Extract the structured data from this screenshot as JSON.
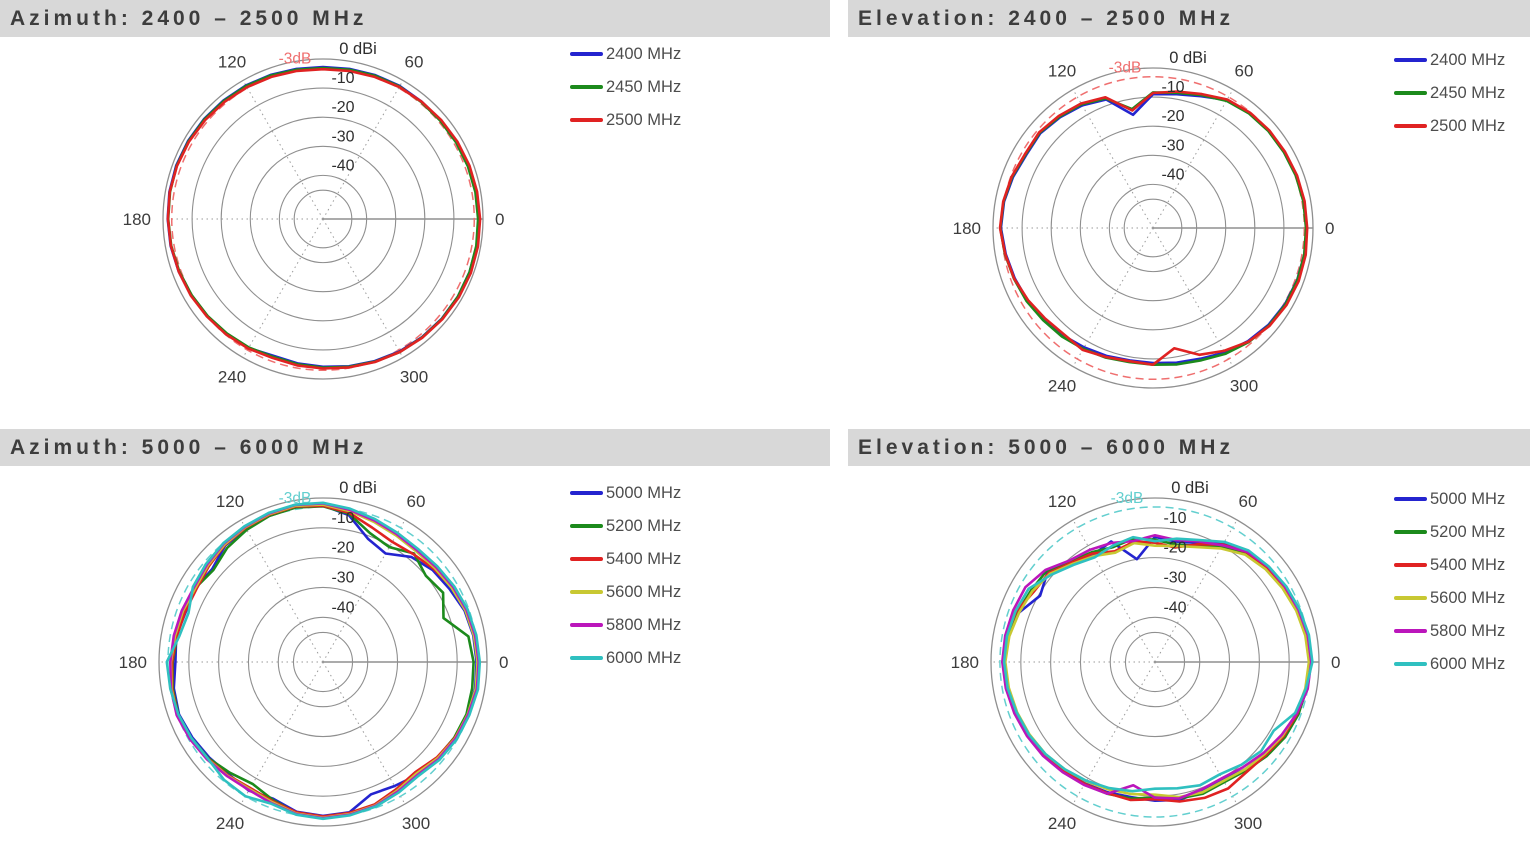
{
  "page": {
    "background": "#ffffff",
    "titlebar_bg": "#d8d8d8",
    "grid_color": "#8f8f8f"
  },
  "chart_data": [
    {
      "type": "polar",
      "title": "Azimuth: 2400 – 2500 MHz",
      "radial_unit": "dBi",
      "scale_min_db": -55,
      "radial_ticks": [
        {
          "value": 0,
          "label": "0 dBi"
        },
        {
          "value": -10,
          "label": "-10"
        },
        {
          "value": -20,
          "label": "-20"
        },
        {
          "value": -30,
          "label": "-30"
        },
        {
          "value": -40,
          "label": "-40"
        }
      ],
      "angle_ticks": [
        0,
        60,
        120,
        180,
        240,
        300
      ],
      "reference": {
        "label": "-3dB",
        "value": -3,
        "color": "#ef6f6f",
        "style": "dashed"
      },
      "angles_deg": [
        0,
        10,
        20,
        30,
        40,
        50,
        60,
        70,
        80,
        90,
        100,
        110,
        120,
        130,
        140,
        150,
        160,
        170,
        180,
        190,
        200,
        210,
        220,
        230,
        240,
        250,
        260,
        270,
        280,
        290,
        300,
        310,
        320,
        330,
        340,
        350
      ],
      "series": [
        {
          "name": "2400 MHz",
          "color": "#2424cf",
          "values": [
            -1.5,
            -1.6,
            -1.8,
            -2.0,
            -2.2,
            -2.3,
            -2.2,
            -2.4,
            -2.6,
            -2.8,
            -2.6,
            -2.3,
            -2.0,
            -1.8,
            -1.6,
            -1.4,
            -1.3,
            -1.4,
            -1.6,
            -1.8,
            -2.2,
            -2.6,
            -3.0,
            -3.4,
            -3.8,
            -5.0,
            -4.6,
            -4.2,
            -3.6,
            -3.0,
            -2.4,
            -2.0,
            -1.7,
            -1.5,
            -1.4,
            -1.4
          ]
        },
        {
          "name": "2450 MHz",
          "color": "#1c8a1c",
          "values": [
            -1.7,
            -1.8,
            -2.0,
            -2.2,
            -2.4,
            -2.5,
            -2.4,
            -2.6,
            -2.9,
            -3.1,
            -2.9,
            -2.5,
            -2.2,
            -2.0,
            -1.8,
            -1.6,
            -1.5,
            -1.6,
            -1.8,
            -2.0,
            -2.4,
            -2.8,
            -3.2,
            -3.6,
            -4.0,
            -4.6,
            -4.3,
            -3.9,
            -3.4,
            -2.8,
            -2.2,
            -1.9,
            -1.6,
            -1.5,
            -1.4,
            -1.5
          ]
        },
        {
          "name": "2500 MHz",
          "color": "#e02222",
          "values": [
            -1.0,
            -1.2,
            -1.4,
            -1.7,
            -2.0,
            -2.3,
            -2.6,
            -3.0,
            -3.3,
            -3.5,
            -3.3,
            -3.0,
            -2.7,
            -2.4,
            -2.1,
            -1.8,
            -1.6,
            -1.5,
            -1.7,
            -1.9,
            -2.2,
            -2.5,
            -2.9,
            -3.2,
            -3.6,
            -4.2,
            -3.9,
            -3.6,
            -3.2,
            -2.7,
            -2.2,
            -1.8,
            -1.4,
            -1.1,
            -0.9,
            -0.9
          ]
        }
      ]
    },
    {
      "type": "polar",
      "title": "Elevation: 2400 – 2500 MHz",
      "radial_unit": "dBi",
      "scale_min_db": -55,
      "radial_ticks": [
        {
          "value": 0,
          "label": "0 dBi"
        },
        {
          "value": -10,
          "label": "-10"
        },
        {
          "value": -20,
          "label": "-20"
        },
        {
          "value": -30,
          "label": "-30"
        },
        {
          "value": -40,
          "label": "-40"
        }
      ],
      "angle_ticks": [
        0,
        60,
        120,
        180,
        240,
        300
      ],
      "reference": {
        "label": "-3dB",
        "value": -3,
        "color": "#ef6f6f",
        "style": "dashed"
      },
      "angles_deg": [
        0,
        10,
        20,
        30,
        40,
        50,
        60,
        70,
        80,
        90,
        100,
        110,
        120,
        130,
        140,
        150,
        160,
        170,
        180,
        190,
        200,
        210,
        220,
        230,
        240,
        250,
        260,
        270,
        280,
        290,
        300,
        310,
        320,
        330,
        340,
        350
      ],
      "series": [
        {
          "name": "2400 MHz",
          "color": "#2424cf",
          "values": [
            -2.2,
            -2.3,
            -2.5,
            -2.8,
            -3.0,
            -3.4,
            -4.2,
            -6.8,
            -8.3,
            -9.0,
            -15.5,
            -8.0,
            -6.3,
            -5.3,
            -4.4,
            -4.7,
            -3.8,
            -3.0,
            -2.7,
            -3.6,
            -4.4,
            -5.2,
            -6.2,
            -6.8,
            -7.6,
            -8.2,
            -8.8,
            -8.6,
            -8.0,
            -7.2,
            -5.6,
            -4.2,
            -3.2,
            -2.6,
            -2.3,
            -2.2
          ]
        },
        {
          "name": "2450 MHz",
          "color": "#1c8a1c",
          "values": [
            -2.4,
            -2.5,
            -2.7,
            -3.0,
            -3.2,
            -3.6,
            -4.5,
            -6.4,
            -7.8,
            -8.4,
            -13.5,
            -7.6,
            -5.9,
            -5.0,
            -4.1,
            -4.4,
            -3.5,
            -2.8,
            -2.5,
            -3.3,
            -4.1,
            -4.8,
            -5.7,
            -6.3,
            -7.0,
            -7.6,
            -8.2,
            -8.0,
            -7.4,
            -6.6,
            -5.1,
            -3.8,
            -2.9,
            -2.4,
            -2.2,
            -2.2
          ]
        },
        {
          "name": "2500 MHz",
          "color": "#e02222",
          "values": [
            -2.0,
            -2.1,
            -2.3,
            -2.6,
            -2.8,
            -3.2,
            -4.0,
            -6.0,
            -7.4,
            -8.6,
            -14.0,
            -7.2,
            -5.6,
            -4.7,
            -3.9,
            -4.2,
            -3.3,
            -2.7,
            -2.4,
            -3.4,
            -4.2,
            -5.4,
            -6.6,
            -7.3,
            -6.6,
            -7.8,
            -8.5,
            -8.0,
            -13.0,
            -8.6,
            -6.2,
            -4.0,
            -2.7,
            -2.0,
            -1.7,
            -1.7
          ]
        }
      ]
    },
    {
      "type": "polar",
      "title": "Azimuth: 5000 – 6000 MHz",
      "radial_unit": "dBi",
      "scale_min_db": -55,
      "radial_ticks": [
        {
          "value": 0,
          "label": "0 dBi"
        },
        {
          "value": -10,
          "label": "-10"
        },
        {
          "value": -20,
          "label": "-20"
        },
        {
          "value": -30,
          "label": "-30"
        },
        {
          "value": -40,
          "label": "-40"
        }
      ],
      "angle_ticks": [
        0,
        60,
        120,
        180,
        240,
        300
      ],
      "reference": {
        "label": "-3dB",
        "value": -3,
        "color": "#63cfcf",
        "style": "dashed"
      },
      "angles_deg": [
        0,
        10,
        20,
        30,
        40,
        50,
        60,
        70,
        80,
        90,
        100,
        110,
        120,
        130,
        140,
        150,
        160,
        170,
        180,
        190,
        200,
        210,
        220,
        230,
        240,
        250,
        260,
        270,
        280,
        290,
        300,
        310,
        320,
        330,
        340,
        350
      ],
      "series": [
        {
          "name": "5000 MHz",
          "color": "#2424cf",
          "values": [
            -3.5,
            -3.8,
            -4.5,
            -6.0,
            -7.0,
            -9.0,
            -13.0,
            -11.0,
            -5.0,
            -2.5,
            -2.2,
            -2.6,
            -3.4,
            -4.0,
            -6.5,
            -5.5,
            -6.0,
            -5.0,
            -5.5,
            -4.2,
            -3.6,
            -4.4,
            -5.2,
            -5.8,
            -5.2,
            -6.2,
            -4.0,
            -3.4,
            -3.8,
            -7.8,
            -7.0,
            -5.6,
            -4.6,
            -3.8,
            -3.4,
            -3.2
          ]
        },
        {
          "name": "5200 MHz",
          "color": "#1c8a1c",
          "values": [
            -4.5,
            -5.5,
            -12.0,
            -8.5,
            -10.0,
            -7.5,
            -10.5,
            -9.0,
            -4.5,
            -2.8,
            -2.4,
            -2.8,
            -3.8,
            -5.0,
            -7.0,
            -5.5,
            -4.8,
            -5.4,
            -4.6,
            -3.8,
            -3.4,
            -4.0,
            -4.8,
            -6.5,
            -7.8,
            -5.8,
            -3.6,
            -3.0,
            -3.4,
            -4.0,
            -5.5,
            -6.5,
            -5.0,
            -4.2,
            -3.8,
            -4.2
          ]
        },
        {
          "name": "5400 MHz",
          "color": "#e02222",
          "values": [
            -3.0,
            -3.4,
            -4.0,
            -5.0,
            -6.5,
            -7.8,
            -8.5,
            -7.0,
            -4.2,
            -2.6,
            -2.0,
            -2.4,
            -3.0,
            -3.8,
            -5.0,
            -6.0,
            -5.8,
            -5.2,
            -4.4,
            -3.6,
            -3.2,
            -3.8,
            -4.6,
            -5.4,
            -6.2,
            -5.4,
            -3.8,
            -3.2,
            -3.6,
            -4.2,
            -5.8,
            -6.8,
            -5.2,
            -4.0,
            -3.0,
            -2.8
          ]
        },
        {
          "name": "5600 MHz",
          "color": "#c8c832",
          "values": [
            -3.2,
            -3.6,
            -4.2,
            -5.2,
            -6.0,
            -6.5,
            -6.0,
            -5.0,
            -3.6,
            -2.2,
            -1.8,
            -2.2,
            -2.8,
            -3.6,
            -4.6,
            -5.5,
            -5.0,
            -4.6,
            -4.0,
            -3.4,
            -3.0,
            -3.6,
            -4.4,
            -5.2,
            -5.8,
            -5.0,
            -3.4,
            -2.8,
            -3.2,
            -3.8,
            -5.2,
            -6.2,
            -4.8,
            -3.8,
            -3.4,
            -3.0
          ]
        },
        {
          "name": "5800 MHz",
          "color": "#bb16bb",
          "values": [
            -2.8,
            -3.2,
            -3.8,
            -4.6,
            -5.5,
            -6.0,
            -5.5,
            -4.5,
            -3.2,
            -1.8,
            -1.5,
            -2.0,
            -2.6,
            -3.2,
            -4.2,
            -5.0,
            -4.6,
            -4.2,
            -3.8,
            -3.2,
            -2.8,
            -3.4,
            -4.2,
            -5.0,
            -5.4,
            -4.6,
            -3.2,
            -2.6,
            -3.0,
            -3.6,
            -4.8,
            -5.6,
            -4.4,
            -3.6,
            -3.2,
            -2.6
          ]
        },
        {
          "name": "6000 MHz",
          "color": "#2fc0c0",
          "values": [
            -2.4,
            -2.8,
            -3.4,
            -4.2,
            -5.0,
            -5.5,
            -5.0,
            -4.0,
            -2.8,
            -1.6,
            -1.4,
            -1.8,
            -2.4,
            -3.0,
            -3.8,
            -4.6,
            -7.0,
            -6.0,
            -2.6,
            -3.0,
            -3.4,
            -4.0,
            -4.6,
            -3.4,
            -3.0,
            -4.4,
            -3.0,
            -2.4,
            -2.8,
            -3.4,
            -4.4,
            -5.2,
            -4.0,
            -3.2,
            -2.8,
            -2.2
          ]
        }
      ]
    },
    {
      "type": "polar",
      "title": "Elevation: 5000 – 6000 MHz",
      "radial_unit": "dBi",
      "scale_min_db": -55,
      "radial_ticks": [
        {
          "value": 0,
          "label": "0 dBi"
        },
        {
          "value": -10,
          "label": "-10"
        },
        {
          "value": -20,
          "label": "-20"
        },
        {
          "value": -30,
          "label": "-30"
        },
        {
          "value": -40,
          "label": "-40"
        }
      ],
      "angle_ticks": [
        0,
        60,
        120,
        180,
        240,
        300
      ],
      "reference": {
        "label": "-3dB",
        "value": -3,
        "color": "#63cfcf",
        "style": "dashed"
      },
      "angles_deg": [
        0,
        10,
        20,
        30,
        40,
        50,
        60,
        70,
        80,
        90,
        100,
        110,
        120,
        130,
        140,
        150,
        160,
        170,
        180,
        190,
        200,
        210,
        220,
        230,
        240,
        250,
        260,
        270,
        280,
        290,
        300,
        310,
        320,
        330,
        340,
        350
      ],
      "series": [
        {
          "name": "5000 MHz",
          "color": "#2424cf",
          "values": [
            -2.8,
            -3.2,
            -4.0,
            -4.8,
            -5.6,
            -6.5,
            -9.0,
            -12.5,
            -14.0,
            -13.0,
            -20.0,
            -12.0,
            -13.5,
            -12.0,
            -8.0,
            -10.5,
            -6.5,
            -5.0,
            -4.5,
            -5.0,
            -5.5,
            -6.0,
            -6.5,
            -7.5,
            -8.0,
            -8.5,
            -9.0,
            -8.5,
            -8.0,
            -9.0,
            -9.5,
            -8.0,
            -6.5,
            -5.0,
            -4.0,
            -3.2
          ]
        },
        {
          "name": "5200 MHz",
          "color": "#1c8a1c",
          "values": [
            -3.2,
            -3.6,
            -4.4,
            -5.2,
            -6.2,
            -7.5,
            -10.5,
            -13.5,
            -15.0,
            -14.0,
            -13.0,
            -14.0,
            -12.5,
            -11.0,
            -7.5,
            -7.0,
            -6.0,
            -4.6,
            -4.2,
            -4.6,
            -5.2,
            -5.6,
            -6.2,
            -7.0,
            -7.6,
            -8.0,
            -8.5,
            -9.5,
            -8.5,
            -8.0,
            -8.5,
            -7.5,
            -6.0,
            -4.6,
            -3.8,
            -3.4
          ]
        },
        {
          "name": "5400 MHz",
          "color": "#e02222",
          "values": [
            -3.0,
            -3.4,
            -4.2,
            -5.0,
            -6.0,
            -7.0,
            -9.5,
            -13.0,
            -16.0,
            -15.0,
            -14.0,
            -15.5,
            -13.0,
            -11.5,
            -8.5,
            -8.0,
            -5.5,
            -4.4,
            -4.0,
            -4.4,
            -5.0,
            -5.8,
            -6.4,
            -7.2,
            -7.8,
            -8.2,
            -8.0,
            -9.0,
            -7.5,
            -6.5,
            -6.0,
            -7.0,
            -6.5,
            -5.2,
            -4.2,
            -3.4
          ]
        },
        {
          "name": "5600 MHz",
          "color": "#c8c832",
          "values": [
            -3.4,
            -3.8,
            -4.6,
            -5.6,
            -6.6,
            -8.0,
            -11.0,
            -14.0,
            -15.5,
            -16.0,
            -14.5,
            -16.0,
            -14.0,
            -12.0,
            -9.0,
            -7.5,
            -6.5,
            -5.4,
            -4.8,
            -5.2,
            -5.8,
            -6.4,
            -7.0,
            -8.0,
            -8.8,
            -9.5,
            -10.0,
            -10.5,
            -9.0,
            -8.5,
            -9.0,
            -8.0,
            -7.0,
            -5.6,
            -4.6,
            -3.8
          ]
        },
        {
          "name": "5800 MHz",
          "color": "#bb16bb",
          "values": [
            -2.6,
            -3.0,
            -3.8,
            -4.6,
            -5.4,
            -6.8,
            -9.8,
            -12.0,
            -13.5,
            -12.5,
            -13.8,
            -12.5,
            -11.5,
            -10.5,
            -7.0,
            -4.8,
            -4.4,
            -4.0,
            -3.8,
            -4.2,
            -4.8,
            -5.4,
            -6.0,
            -6.8,
            -7.4,
            -8.0,
            -13.0,
            -9.5,
            -8.5,
            -9.5,
            -10.0,
            -9.0,
            -7.5,
            -6.0,
            -4.4,
            -3.0
          ]
        },
        {
          "name": "6000 MHz",
          "color": "#2fc0c0",
          "values": [
            -2.2,
            -2.6,
            -3.4,
            -4.2,
            -5.2,
            -6.2,
            -8.5,
            -11.5,
            -13.0,
            -14.5,
            -12.5,
            -13.5,
            -14.5,
            -12.5,
            -9.5,
            -6.0,
            -5.2,
            -4.6,
            -4.4,
            -4.8,
            -5.6,
            -6.2,
            -7.0,
            -8.0,
            -9.0,
            -10.0,
            -11.0,
            -12.5,
            -12.0,
            -11.0,
            -11.5,
            -10.0,
            -8.5,
            -9.0,
            -5.0,
            -3.6
          ]
        }
      ]
    }
  ]
}
